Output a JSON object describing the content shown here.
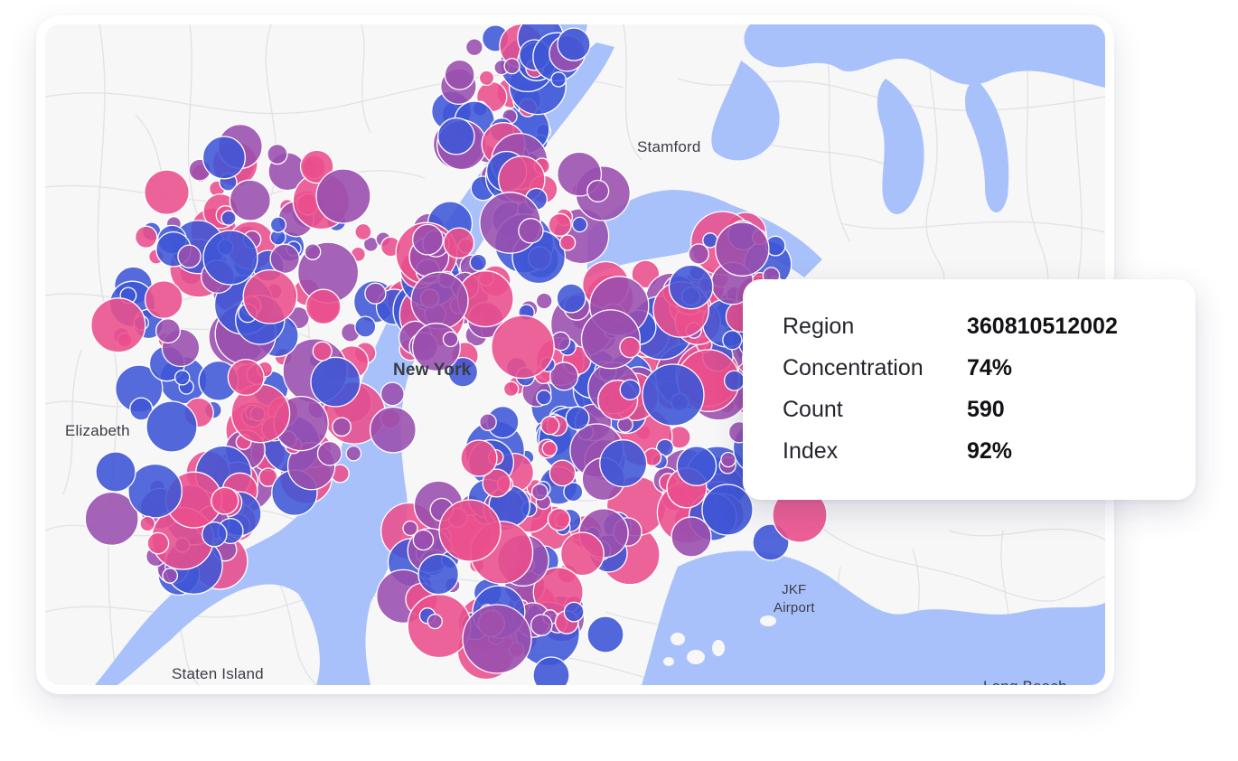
{
  "map": {
    "place_labels": {
      "stamford": "Stamford",
      "new_york": "New York",
      "elizabeth": "Elizabeth",
      "jfk_line1": "JKF",
      "jfk_line2": "Airport",
      "staten_island": "Staten Island",
      "long_beach": "Long Beach"
    },
    "colors": {
      "land": "#f7f7f8",
      "water": "#a9c1fb",
      "roads": "#e4e4e7",
      "bubble_blue": "#3f57d6",
      "bubble_purple": "#9a4fae",
      "bubble_pink": "#ea4f8c"
    }
  },
  "tooltip": {
    "rows": [
      {
        "label": "Region",
        "value": "360810512002"
      },
      {
        "label": "Concentration",
        "value": "74%"
      },
      {
        "label": "Count",
        "value": "590"
      },
      {
        "label": "Index",
        "value": "92%"
      }
    ]
  }
}
